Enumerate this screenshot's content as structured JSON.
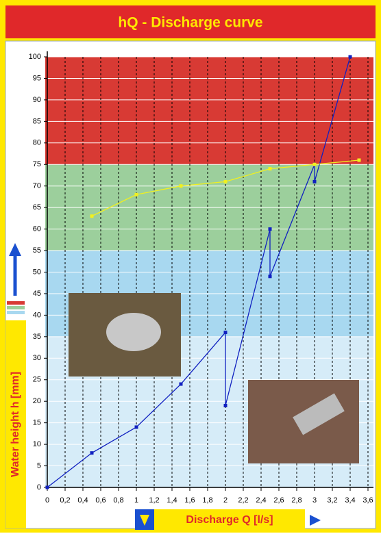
{
  "chart_data": {
    "type": "line",
    "title": "hQ - Discharge curve",
    "x_label": "Discharge Q [l/s]",
    "y_label": "Water height h [mm]",
    "xlim": [
      0,
      3.6
    ],
    "ylim": [
      0,
      100
    ],
    "xticks": [
      0,
      {
        "value": 0.2,
        "label": "0,2"
      },
      {
        "value": 0.4,
        "label": "0,4"
      },
      {
        "value": 0.6,
        "label": "0,6"
      },
      {
        "value": 0.8,
        "label": "0,8"
      },
      1,
      {
        "value": 1.2,
        "label": "1,2"
      },
      {
        "value": 1.4,
        "label": "1,4"
      },
      {
        "value": 1.6,
        "label": "1,6"
      },
      {
        "value": 1.8,
        "label": "1,8"
      },
      2,
      {
        "value": 2.2,
        "label": "2,2"
      },
      {
        "value": 2.4,
        "label": "2,4"
      },
      {
        "value": 2.6,
        "label": "2,6"
      },
      {
        "value": 2.8,
        "label": "2,8"
      },
      3,
      {
        "value": 3.2,
        "label": "3,2"
      },
      {
        "value": 3.4,
        "label": "3,4"
      },
      {
        "value": 3.6,
        "label": "3,6"
      }
    ],
    "yticks": [
      0,
      5,
      10,
      15,
      20,
      25,
      30,
      35,
      40,
      45,
      50,
      55,
      60,
      65,
      70,
      75,
      80,
      85,
      90,
      95,
      100
    ],
    "zones": [
      {
        "from": 0,
        "to": 35,
        "color": "#d6ecf8"
      },
      {
        "from": 35,
        "to": 55,
        "color": "#a8d8f0"
      },
      {
        "from": 55,
        "to": 75,
        "color": "#9ccf9c"
      },
      {
        "from": 75,
        "to": 100,
        "color": "#d83a34"
      }
    ],
    "grid": true,
    "series": [
      {
        "color": "#1020c0",
        "x": [
          0,
          0.5,
          1,
          1.5,
          2,
          2,
          2.5,
          2.5,
          3,
          3,
          3.4
        ],
        "values": [
          0,
          8,
          14,
          24,
          36,
          19,
          60,
          49,
          75,
          71,
          100
        ]
      },
      {
        "color": "#f0f020",
        "x": [
          0.5,
          1,
          1.5,
          2,
          2.5,
          3,
          3.5
        ],
        "values": [
          63,
          68,
          70,
          71,
          74,
          75,
          76
        ]
      }
    ]
  }
}
